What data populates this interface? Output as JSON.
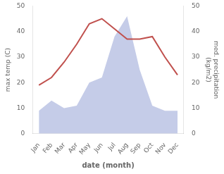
{
  "chart_data": {
    "type": "line",
    "categories": [
      "Jan",
      "Feb",
      "Mar",
      "Apr",
      "May",
      "Jun",
      "Jul",
      "Aug",
      "Sep",
      "Oct",
      "Nov",
      "Dec"
    ],
    "xlabel": "date (month)",
    "ylabel": "max temp (C)",
    "y2label": "med. precipitation\n(kg/m2)",
    "series": [
      {
        "type": "area",
        "color": "#c5cce8",
        "axis": "y2",
        "values": [
          9,
          13,
          10,
          11,
          20,
          22,
          38,
          46,
          25,
          11,
          9,
          9
        ]
      },
      {
        "type": "line",
        "color": "#c0504d",
        "values": [
          19,
          22,
          28,
          35,
          43,
          45,
          41,
          37,
          37,
          38,
          30,
          23
        ]
      }
    ],
    "ylim": [
      0,
      50
    ],
    "yticks": [
      0,
      10,
      20,
      30,
      40,
      50
    ],
    "y2lim": [
      0,
      50
    ],
    "y2ticks": [
      0,
      10,
      20,
      30,
      40,
      50
    ],
    "grid": false
  }
}
